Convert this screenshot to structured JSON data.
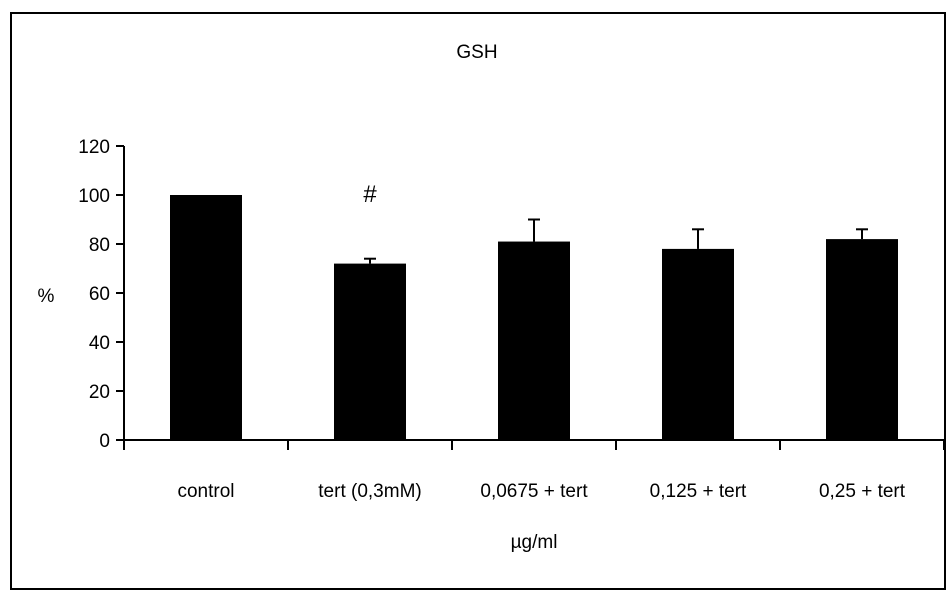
{
  "chart_data": {
    "type": "bar",
    "title": "GSH",
    "xlabel": "µg/ml",
    "ylabel": "%",
    "ylim": [
      0,
      120
    ],
    "yticks": [
      0,
      20,
      40,
      60,
      80,
      100,
      120
    ],
    "categories": [
      "control",
      "tert (0,3mM)",
      "0,0675 + tert",
      "0,125 + tert",
      "0,25 + tert"
    ],
    "values": [
      100,
      72,
      81,
      78,
      82
    ],
    "errors": [
      0,
      2,
      9,
      8,
      4
    ],
    "annotations": [
      {
        "category_index": 1,
        "text": "#"
      }
    ],
    "bar_color": "#000000",
    "grid": false,
    "legend": "none"
  }
}
